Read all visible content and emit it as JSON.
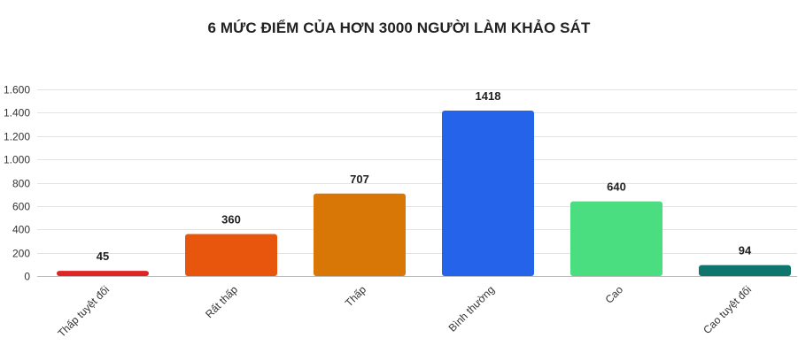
{
  "chart_data": {
    "type": "bar",
    "title": "6 MỨC ĐIỂM CỦA HƠN 3000 NGƯỜI LÀM KHẢO SÁT",
    "categories": [
      "Thấp tuyệt đối",
      "Rất thấp",
      "Thấp",
      "Bình thường",
      "Cao",
      "Cao tuyệt đối"
    ],
    "values": [
      45,
      360,
      707,
      1418,
      640,
      94
    ],
    "value_labels": [
      "45",
      "360",
      "707",
      "1418",
      "640",
      "94"
    ],
    "colors": [
      "#e02424",
      "#e8560d",
      "#d97706",
      "#2563eb",
      "#4ade80",
      "#0f766e"
    ],
    "ylim": [
      0,
      1600
    ],
    "yticks": [
      0,
      200,
      400,
      600,
      800,
      1000,
      1200,
      1400,
      1600
    ],
    "ytick_labels": [
      "0",
      "200",
      "400",
      "600",
      "800",
      "1.000",
      "1.200",
      "1.400",
      "1.600"
    ],
    "grid": true,
    "xlabel": "",
    "ylabel": ""
  }
}
